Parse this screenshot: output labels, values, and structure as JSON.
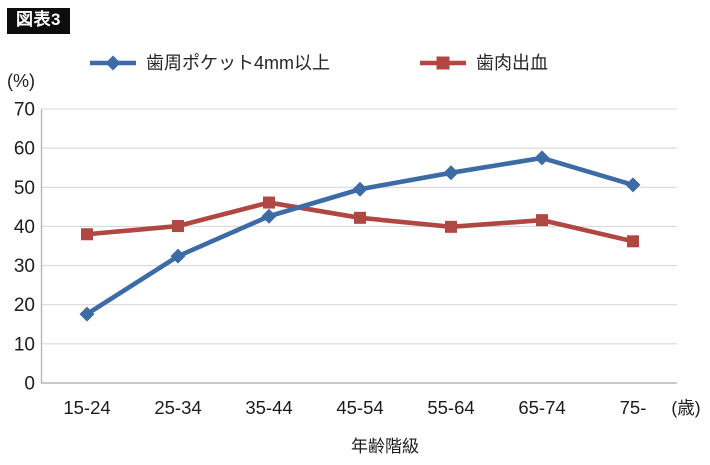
{
  "figure_label": "図表3",
  "y_unit_label": "(%)",
  "x_unit_label": "(歳)",
  "x_axis_title": "年齢階級",
  "chart_data": {
    "type": "line",
    "title": "",
    "categories": [
      "15-24",
      "25-34",
      "35-44",
      "45-54",
      "55-64",
      "65-74",
      "75-"
    ],
    "series": [
      {
        "name": "歯周ポケット4mm以上",
        "marker": "diamond",
        "color": "#3d6ba6",
        "values": [
          17.6,
          32.4,
          42.6,
          49.5,
          53.7,
          57.5,
          50.6
        ]
      },
      {
        "name": "歯肉出血",
        "marker": "square",
        "color": "#b04743",
        "values": [
          38.0,
          40.1,
          46.1,
          42.2,
          39.9,
          41.6,
          36.2
        ]
      }
    ],
    "xlabel": "年齢階級",
    "xlabel_unit": "(歳)",
    "ylabel_unit": "(%)",
    "ylim": [
      0,
      70
    ],
    "yticks": [
      0,
      10,
      20,
      30,
      40,
      50,
      60,
      70
    ],
    "grid": true,
    "legend_position": "top"
  },
  "colors": {
    "background": "#ffffff",
    "grid": "#d9d9d9",
    "axis": "#b7b7b7",
    "text": "#1c1c1c",
    "badge_bg": "#0d0d0d",
    "badge_text": "#ffffff"
  }
}
